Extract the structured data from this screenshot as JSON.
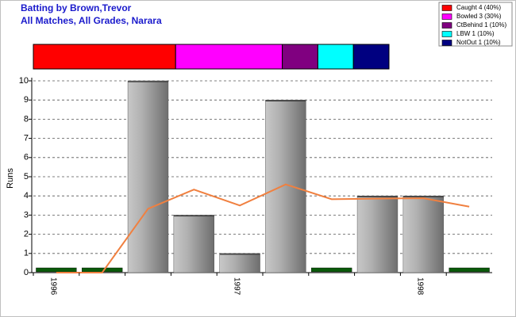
{
  "chart_data": {
    "type": "bar",
    "title": "Batting by Brown,Trevor",
    "subtitle": "All Matches, All Grades, Narara",
    "y_label": "Runs",
    "categories": [
      "1996",
      null,
      null,
      null,
      "1997",
      null,
      null,
      null,
      "1998",
      null
    ],
    "series": [
      {
        "color": "#a0a0a0",
        "zero_color": "#0a5a0a",
        "values": [
          0,
          0,
          10,
          3,
          1,
          9,
          0,
          4,
          4,
          0
        ]
      },
      {
        "type": "line",
        "color": "#f08040",
        "values": [
          0,
          0,
          3.33,
          4.33,
          3.5,
          4.6,
          3.83,
          3.86,
          3.88,
          3.44
        ]
      }
    ],
    "ylim": [
      0,
      10
    ],
    "yticks": [
      0,
      1,
      2,
      3,
      4,
      5,
      6,
      7,
      8,
      9,
      10
    ],
    "grid": true,
    "breakdown": {
      "labels": [
        "Caught 4 (40%)",
        "Bowled 3 (30%)",
        "CtBehind 1 (10%)",
        "LBW 1 (10%)",
        "NotOut 1 (10%)"
      ],
      "values": [
        40,
        30,
        10,
        10,
        10
      ],
      "colors": [
        "#ff0000",
        "#ff00ff",
        "#800080",
        "#00ffff",
        "#000080"
      ]
    }
  }
}
